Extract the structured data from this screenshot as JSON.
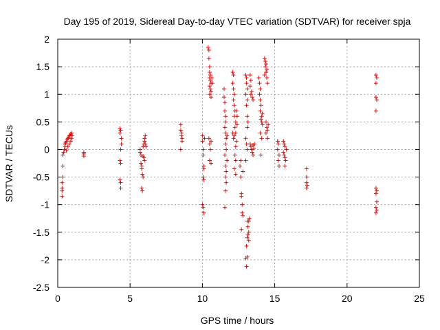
{
  "chart_data": {
    "type": "scatter",
    "title": "Day 195 of 2019, Sidereal Day-to-day VTEC variation (SDTVAR) for receiver spja",
    "xlabel": "GPS time / hours",
    "ylabel": "SDTVAR / TECUs",
    "xlim": [
      0,
      25
    ],
    "ylim": [
      -2.5,
      2
    ],
    "xticks": [
      "0",
      "5",
      "10",
      "15",
      "20",
      "25"
    ],
    "yticks": [
      "-2.5",
      "-2",
      "-1.5",
      "-1",
      "-0.5",
      "0",
      "0.5",
      "1",
      "1.5",
      "2"
    ],
    "grid": true,
    "marker": "+",
    "color": "#ff0000",
    "series": [
      {
        "name": "SDTVAR",
        "points": [
          [
            0.3,
            -0.85
          ],
          [
            0.3,
            -0.75
          ],
          [
            0.3,
            -0.7
          ],
          [
            0.3,
            -0.6
          ],
          [
            0.35,
            -0.5
          ],
          [
            0.35,
            -0.3
          ],
          [
            0.35,
            -0.1
          ],
          [
            0.4,
            -0.05
          ],
          [
            0.45,
            0.0
          ],
          [
            0.5,
            0.05
          ],
          [
            0.5,
            0.1
          ],
          [
            0.55,
            0.12
          ],
          [
            0.6,
            0.15
          ],
          [
            0.6,
            -0.02
          ],
          [
            0.65,
            0.18
          ],
          [
            0.7,
            0.2
          ],
          [
            0.7,
            0.05
          ],
          [
            0.75,
            0.22
          ],
          [
            0.8,
            0.25
          ],
          [
            0.8,
            0.1
          ],
          [
            0.85,
            0.26
          ],
          [
            0.9,
            0.28
          ],
          [
            0.9,
            0.15
          ],
          [
            0.95,
            0.3
          ],
          [
            0.95,
            0.2
          ],
          [
            1.0,
            0.25
          ],
          [
            1.8,
            -0.05
          ],
          [
            1.8,
            -0.08
          ],
          [
            1.8,
            -0.12
          ],
          [
            4.3,
            0.38
          ],
          [
            4.35,
            0.35
          ],
          [
            4.3,
            0.3
          ],
          [
            4.4,
            0.2
          ],
          [
            4.4,
            0.1
          ],
          [
            4.35,
            0.0
          ],
          [
            4.3,
            -0.2
          ],
          [
            4.35,
            -0.25
          ],
          [
            4.3,
            -0.55
          ],
          [
            4.35,
            -0.6
          ],
          [
            4.35,
            -0.7
          ],
          [
            5.7,
            0.0
          ],
          [
            5.7,
            -0.05
          ],
          [
            5.75,
            -0.1
          ],
          [
            5.75,
            -0.25
          ],
          [
            5.8,
            -0.3
          ],
          [
            5.8,
            -0.35
          ],
          [
            5.85,
            -0.45
          ],
          [
            5.9,
            -0.5
          ],
          [
            5.8,
            -0.7
          ],
          [
            5.85,
            -0.75
          ],
          [
            5.9,
            0.05
          ],
          [
            5.95,
            0.1
          ],
          [
            6.0,
            0.15
          ],
          [
            6.0,
            0.2
          ],
          [
            6.05,
            0.25
          ],
          [
            6.05,
            0.1
          ],
          [
            5.95,
            -0.15
          ],
          [
            6.0,
            -0.2
          ],
          [
            5.9,
            -0.12
          ],
          [
            6.1,
            0.05
          ],
          [
            8.5,
            0.45
          ],
          [
            8.5,
            0.35
          ],
          [
            8.55,
            0.3
          ],
          [
            8.55,
            0.25
          ],
          [
            8.6,
            0.2
          ],
          [
            8.6,
            0.15
          ],
          [
            8.5,
            0.0
          ],
          [
            10.0,
            0.25
          ],
          [
            10.0,
            0.15
          ],
          [
            10.05,
            0.0
          ],
          [
            10.05,
            -0.1
          ],
          [
            10.1,
            -0.3
          ],
          [
            10.1,
            -0.35
          ],
          [
            10.05,
            -0.5
          ],
          [
            10.1,
            -0.55
          ],
          [
            10.0,
            -1.0
          ],
          [
            10.05,
            -1.05
          ],
          [
            10.1,
            -1.15
          ],
          [
            10.15,
            0.2
          ],
          [
            10.4,
            1.85
          ],
          [
            10.45,
            1.8
          ],
          [
            10.45,
            1.65
          ],
          [
            10.5,
            1.5
          ],
          [
            10.5,
            1.4
          ],
          [
            10.55,
            1.35
          ],
          [
            10.5,
            1.3
          ],
          [
            10.55,
            1.25
          ],
          [
            10.6,
            1.2
          ],
          [
            10.5,
            1.15
          ],
          [
            10.55,
            1.1
          ],
          [
            10.6,
            1.05
          ],
          [
            10.5,
            1.0
          ],
          [
            10.6,
            0.95
          ],
          [
            10.45,
            0.2
          ],
          [
            10.5,
            0.1
          ],
          [
            10.55,
            0.0
          ],
          [
            10.5,
            -0.2
          ],
          [
            10.6,
            -0.25
          ],
          [
            10.6,
            0.15
          ],
          [
            10.65,
            1.3
          ],
          [
            10.7,
            1.2
          ],
          [
            11.5,
            1.1
          ],
          [
            11.5,
            0.95
          ],
          [
            11.55,
            0.85
          ],
          [
            11.55,
            0.7
          ],
          [
            11.6,
            0.6
          ],
          [
            11.6,
            0.5
          ],
          [
            11.55,
            0.4
          ],
          [
            11.6,
            0.3
          ],
          [
            11.65,
            0.2
          ],
          [
            11.6,
            0.1
          ],
          [
            11.65,
            0.0
          ],
          [
            11.55,
            -0.1
          ],
          [
            11.6,
            -0.3
          ],
          [
            11.65,
            -0.4
          ],
          [
            11.6,
            -0.5
          ],
          [
            11.65,
            -0.6
          ],
          [
            11.6,
            -0.75
          ],
          [
            11.55,
            -1.05
          ],
          [
            11.7,
            0.25
          ],
          [
            11.7,
            -0.2
          ],
          [
            12.1,
            1.4
          ],
          [
            12.15,
            1.35
          ],
          [
            12.1,
            1.2
          ],
          [
            12.15,
            1.1
          ],
          [
            12.2,
            1.0
          ],
          [
            12.15,
            0.9
          ],
          [
            12.2,
            0.8
          ],
          [
            12.25,
            0.7
          ],
          [
            12.2,
            0.6
          ],
          [
            12.3,
            0.5
          ],
          [
            12.25,
            0.4
          ],
          [
            12.3,
            0.3
          ],
          [
            12.2,
            0.25
          ],
          [
            12.35,
            0.15
          ],
          [
            12.3,
            0.05
          ],
          [
            12.25,
            -0.1
          ],
          [
            12.3,
            -0.2
          ],
          [
            12.2,
            -0.35
          ],
          [
            12.35,
            0.7
          ],
          [
            12.4,
            0.6
          ],
          [
            12.4,
            0.45
          ],
          [
            12.3,
            -0.45
          ],
          [
            12.1,
            0.3
          ],
          [
            12.15,
            0.2
          ],
          [
            12.6,
            -0.3
          ],
          [
            12.65,
            -0.5
          ],
          [
            12.7,
            -0.8
          ],
          [
            12.7,
            -0.85
          ],
          [
            12.75,
            -1.0
          ],
          [
            12.75,
            -1.15
          ],
          [
            12.8,
            -1.2
          ],
          [
            12.7,
            -1.45
          ],
          [
            12.8,
            -0.4
          ],
          [
            12.65,
            -0.2
          ],
          [
            13.0,
            1.35
          ],
          [
            13.05,
            1.3
          ],
          [
            13.05,
            1.2
          ],
          [
            13.1,
            1.1
          ],
          [
            13.0,
            1.0
          ],
          [
            13.1,
            0.9
          ],
          [
            13.05,
            0.8
          ],
          [
            13.1,
            0.6
          ],
          [
            13.15,
            0.5
          ],
          [
            13.1,
            0.4
          ],
          [
            13.0,
            0.2
          ],
          [
            13.05,
            0.1
          ],
          [
            13.1,
            0.0
          ],
          [
            13.0,
            -0.2
          ],
          [
            13.1,
            -1.3
          ],
          [
            13.15,
            -1.4
          ],
          [
            13.2,
            -1.5
          ],
          [
            13.15,
            -1.55
          ],
          [
            13.1,
            -1.6
          ],
          [
            13.2,
            -1.65
          ],
          [
            13.05,
            -1.75
          ],
          [
            13.1,
            -1.95
          ],
          [
            13.0,
            -1.97
          ],
          [
            13.05,
            -2.12
          ],
          [
            13.25,
            -1.25
          ],
          [
            13.2,
            -1.3
          ],
          [
            13.3,
            1.35
          ],
          [
            13.35,
            1.25
          ],
          [
            13.3,
            1.15
          ],
          [
            13.4,
            1.05
          ],
          [
            13.35,
            1.0
          ],
          [
            13.45,
            0.95
          ],
          [
            13.5,
            0.9
          ],
          [
            13.3,
            0.1
          ],
          [
            13.35,
            0.05
          ],
          [
            13.4,
            0.0
          ],
          [
            13.45,
            -0.05
          ],
          [
            13.5,
            0.08
          ],
          [
            13.55,
            0.02
          ],
          [
            13.5,
            -0.1
          ],
          [
            13.6,
            0.1
          ],
          [
            13.9,
            1.3
          ],
          [
            13.95,
            1.2
          ],
          [
            14.0,
            1.1
          ],
          [
            13.95,
            1.0
          ],
          [
            14.0,
            0.9
          ],
          [
            14.05,
            0.8
          ],
          [
            14.0,
            0.7
          ],
          [
            14.1,
            0.6
          ],
          [
            14.05,
            0.55
          ],
          [
            14.1,
            0.5
          ],
          [
            14.0,
            0.3
          ],
          [
            14.1,
            0.2
          ],
          [
            14.05,
            -0.1
          ],
          [
            14.15,
            0.65
          ],
          [
            14.15,
            0.45
          ],
          [
            14.3,
            1.65
          ],
          [
            14.35,
            1.6
          ],
          [
            14.4,
            1.55
          ],
          [
            14.35,
            1.5
          ],
          [
            14.45,
            1.45
          ],
          [
            14.4,
            1.4
          ],
          [
            14.3,
            1.35
          ],
          [
            14.45,
            1.3
          ],
          [
            14.5,
            1.2
          ],
          [
            14.4,
            0.5
          ],
          [
            14.45,
            0.4
          ],
          [
            14.5,
            0.35
          ],
          [
            14.4,
            0.3
          ],
          [
            14.5,
            0.2
          ],
          [
            14.55,
            0.45
          ],
          [
            15.2,
            0.15
          ],
          [
            15.25,
            0.1
          ],
          [
            15.2,
            0.0
          ],
          [
            15.3,
            -0.1
          ],
          [
            15.25,
            -0.2
          ],
          [
            15.3,
            -0.3
          ],
          [
            15.6,
            0.15
          ],
          [
            15.65,
            0.1
          ],
          [
            15.7,
            0.05
          ],
          [
            15.6,
            -0.05
          ],
          [
            15.65,
            -0.1
          ],
          [
            15.7,
            -0.15
          ],
          [
            15.75,
            -0.2
          ],
          [
            15.7,
            -0.3
          ],
          [
            15.8,
            0.0
          ],
          [
            17.2,
            -0.35
          ],
          [
            17.2,
            -0.5
          ],
          [
            17.2,
            -0.6
          ],
          [
            17.25,
            -0.65
          ],
          [
            17.2,
            -0.7
          ],
          [
            22.0,
            1.35
          ],
          [
            22.05,
            1.3
          ],
          [
            22.0,
            1.2
          ],
          [
            22.0,
            0.95
          ],
          [
            22.05,
            0.9
          ],
          [
            22.0,
            0.7
          ],
          [
            22.0,
            -0.7
          ],
          [
            22.05,
            -0.75
          ],
          [
            22.0,
            -0.8
          ],
          [
            22.05,
            -0.95
          ],
          [
            22.0,
            -1.05
          ],
          [
            22.05,
            -1.1
          ],
          [
            22.0,
            -1.15
          ]
        ]
      }
    ]
  }
}
